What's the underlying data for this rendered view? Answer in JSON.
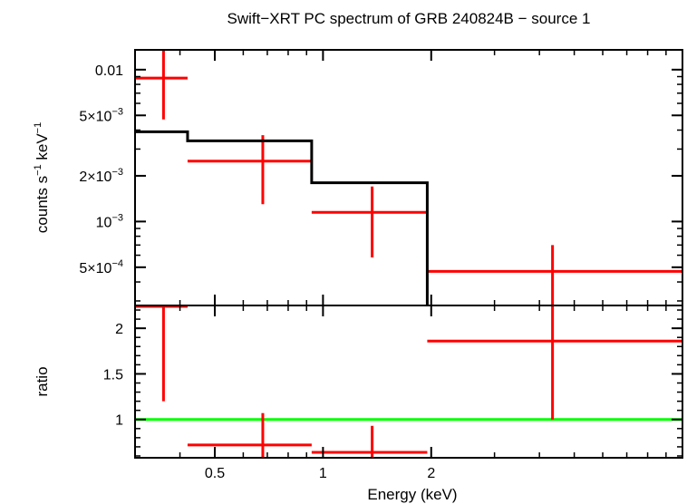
{
  "chart_data": {
    "title": "Swift−XRT PC spectrum of GRB 240824B − source 1",
    "xlabel": "Energy (keV)",
    "x_scale": "log",
    "xlim": [
      0.3,
      10
    ],
    "x_ticks": [
      {
        "value": 0.5,
        "label": "0.5"
      },
      {
        "value": 1,
        "label": "1"
      },
      {
        "value": 2,
        "label": "2"
      }
    ],
    "panels": [
      {
        "type": "scatter",
        "ylabel": {
          "base": "counts s",
          "exp1": "−1",
          "mid": " keV",
          "exp2": "−1"
        },
        "y_scale": "log",
        "ylim": [
          0.00028,
          0.0135
        ],
        "y_ticks": [
          {
            "value": 0.01,
            "base": "0.01",
            "exp": ""
          },
          {
            "value": 0.005,
            "base": "5×10",
            "exp": "−3"
          },
          {
            "value": 0.002,
            "base": "2×10",
            "exp": "−3"
          },
          {
            "value": 0.001,
            "base": "10",
            "exp": "−3"
          },
          {
            "value": 0.0005,
            "base": "5×10",
            "exp": "−4"
          }
        ],
        "series": [
          {
            "kind": "data",
            "color": "#ff0000",
            "points": [
              {
                "x": 0.36,
                "x_lo": 0.3,
                "x_hi": 0.42,
                "y": 0.0088,
                "y_lo": 0.0047,
                "y_hi": 0.0135
              },
              {
                "x": 0.68,
                "x_lo": 0.42,
                "x_hi": 0.93,
                "y": 0.0025,
                "y_lo": 0.0013,
                "y_hi": 0.0037
              },
              {
                "x": 1.37,
                "x_lo": 0.93,
                "x_hi": 1.95,
                "y": 0.00115,
                "y_lo": 0.00058,
                "y_hi": 0.0017
              },
              {
                "x": 4.35,
                "x_lo": 1.95,
                "x_hi": 10,
                "y": 0.00047,
                "y_lo": 0.00028,
                "y_hi": 0.0007
              }
            ]
          },
          {
            "kind": "model",
            "color": "#000000",
            "steps": [
              {
                "x_lo": 0.3,
                "x_hi": 0.42,
                "y": 0.0039
              },
              {
                "x_lo": 0.42,
                "x_hi": 0.93,
                "y": 0.0034
              },
              {
                "x_lo": 0.93,
                "x_hi": 1.95,
                "y": 0.0018
              },
              {
                "x_lo": 1.95,
                "x_hi": 10,
                "y": 0.00027
              }
            ]
          }
        ]
      },
      {
        "type": "scatter",
        "ylabel": {
          "base": "ratio",
          "exp1": "",
          "mid": "",
          "exp2": ""
        },
        "y_scale": "linear",
        "ylim": [
          0.58,
          2.25
        ],
        "y_ticks": [
          {
            "value": 2,
            "base": "2",
            "exp": ""
          },
          {
            "value": 1.5,
            "base": "1.5",
            "exp": ""
          },
          {
            "value": 1,
            "base": "1",
            "exp": ""
          }
        ],
        "reference_line": {
          "y": 1,
          "color": "#00ff00"
        },
        "series": [
          {
            "kind": "data",
            "color": "#ff0000",
            "points": [
              {
                "x": 0.36,
                "x_lo": 0.3,
                "x_hi": 0.42,
                "y": 2.24,
                "y_lo": 1.2,
                "y_hi": 2.25
              },
              {
                "x": 0.68,
                "x_lo": 0.42,
                "x_hi": 0.93,
                "y": 0.72,
                "y_lo": 0.58,
                "y_hi": 1.07
              },
              {
                "x": 1.37,
                "x_lo": 0.93,
                "x_hi": 1.95,
                "y": 0.64,
                "y_lo": 0.58,
                "y_hi": 0.93
              },
              {
                "x": 4.35,
                "x_lo": 1.95,
                "x_hi": 10,
                "y": 1.86,
                "y_lo": 1.0,
                "y_hi": 2.25
              }
            ]
          }
        ]
      }
    ]
  }
}
